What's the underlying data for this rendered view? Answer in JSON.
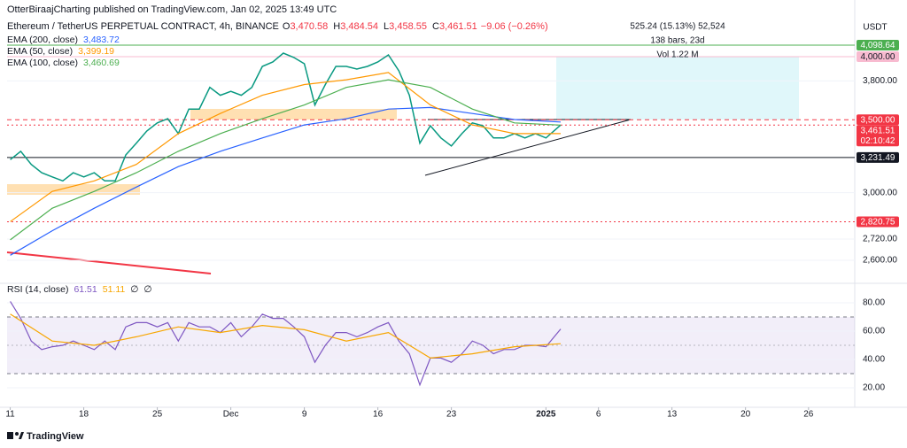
{
  "header": {
    "publisher": "OtterBiraajCharting published on TradingView.com, Jan 02, 2025 13:49 UTC",
    "symbol": "Ethereum / TetherUS PERPETUAL CONTRACT, 4h, BINANCE",
    "ohlc": [
      {
        "label": "O",
        "value": "3,470.58"
      },
      {
        "label": "H",
        "value": "3,484.54"
      },
      {
        "label": "L",
        "value": "3,458.55"
      },
      {
        "label": "C",
        "value": "3,461.51"
      }
    ],
    "change": "−9.06 (−0.26%)",
    "measure": "525.24 (15.13%) 52,524",
    "bars": "138 bars, 23d",
    "volume": "Vol 1.22 M",
    "currency": "USDT",
    "brand": "TradingView"
  },
  "chart_data": [
    {
      "type": "line",
      "log_scale": true,
      "xlim": [
        -0.3,
        80.4
      ],
      "ylim": [
        2486,
        4168
      ],
      "yticks": [
        {
          "value": 2600,
          "label": "2,600.00"
        },
        {
          "value": 2720,
          "label": "2,720.00"
        },
        {
          "value": 3000,
          "label": "3,000.00"
        },
        {
          "value": 3800,
          "label": "3,800.00"
        }
      ],
      "series": [
        {
          "color": "#089981",
          "x": [
            0,
            1,
            2,
            3,
            4,
            5,
            6,
            7,
            8,
            9,
            10,
            11,
            12,
            13,
            14,
            15,
            16,
            17,
            18,
            19,
            20,
            21,
            22,
            23,
            24,
            25,
            26,
            27,
            28,
            29,
            30,
            31,
            32,
            33,
            34,
            35,
            36,
            37,
            38,
            39,
            40,
            41,
            42,
            43,
            44,
            45,
            46,
            47,
            48,
            49,
            50,
            51,
            52.4
          ],
          "values": [
            3217,
            3274,
            3185,
            3129,
            3102,
            3076,
            3129,
            3102,
            3129,
            3076,
            3076,
            3249,
            3331,
            3418,
            3477,
            3508,
            3399,
            3580,
            3580,
            3748,
            3686,
            3717,
            3686,
            3748,
            3918,
            3955,
            4030,
            3993,
            3940,
            3611,
            3771,
            3918,
            3918,
            3896,
            3918,
            3955,
            4015,
            3882,
            3686,
            3331,
            3456,
            3368,
            3311,
            3399,
            3477,
            3456,
            3368,
            3368,
            3399,
            3368,
            3399,
            3368,
            3461.51
          ]
        },
        {
          "name": "EMA (200, close)",
          "legend_value": "3,483.72",
          "color": "#2962ff",
          "x": [
            0,
            4,
            8,
            12,
            16,
            20,
            24,
            28,
            32,
            36,
            40,
            44,
            48,
            52.4
          ],
          "values": [
            2628,
            2768,
            2903,
            3036,
            3170,
            3274,
            3368,
            3462,
            3508,
            3580,
            3592,
            3547,
            3502,
            3483.72
          ]
        },
        {
          "name": "EMA (50, close)",
          "legend_value": "3,399.19",
          "color": "#ff9800",
          "x": [
            0,
            4,
            8,
            12,
            16,
            20,
            24,
            28,
            32,
            36,
            40,
            44,
            48,
            52.4
          ],
          "values": [
            2822,
            3008,
            3076,
            3185,
            3399,
            3547,
            3686,
            3771,
            3809,
            3868,
            3611,
            3462,
            3399,
            3399.19
          ]
        },
        {
          "name": "EMA (100, close)",
          "legend_value": "3,460.69",
          "color": "#4caf50",
          "x": [
            0,
            4,
            8,
            12,
            16,
            20,
            24,
            28,
            32,
            36,
            40,
            44,
            48,
            52.4
          ],
          "values": [
            2715,
            2903,
            3008,
            3129,
            3274,
            3399,
            3508,
            3611,
            3748,
            3809,
            3748,
            3580,
            3477,
            3460.69
          ]
        }
      ],
      "price_labels": [
        {
          "value": 4098.64,
          "label": "4,098.64",
          "color": "#4caf50",
          "text_color": "#ffffff",
          "line": "solid"
        },
        {
          "value": 4000,
          "label": "4,000.00",
          "color": "#f8bbd0",
          "text_color": "#131722",
          "line": "solid"
        },
        {
          "value": 3500,
          "label": "3,500.00",
          "color": "#f23645",
          "text_color": "#ffffff",
          "line": "dashed"
        },
        {
          "value": 3461.51,
          "label": "3,461.51",
          "sublabel": "02:10:42",
          "color": "#f23645",
          "text_color": "#ffffff",
          "line": "dotted"
        },
        {
          "value": 3231.49,
          "label": "3,231.49",
          "color": "#131722",
          "text_color": "#ffffff",
          "line": "solid"
        },
        {
          "value": 2820.75,
          "label": "2,820.75",
          "color": "#f23645",
          "text_color": "#ffffff",
          "line": "dotted"
        }
      ]
    },
    {
      "type": "line",
      "title": "RSI (14, close)",
      "extra_labels": [
        "∅",
        "∅"
      ],
      "xlim": [
        -0.3,
        80.4
      ],
      "xticks": [
        {
          "value": 0,
          "label": "11"
        },
        {
          "value": 7,
          "label": "18"
        },
        {
          "value": 14,
          "label": "25"
        },
        {
          "value": 21,
          "label": "Dec"
        },
        {
          "value": 28,
          "label": "9"
        },
        {
          "value": 35,
          "label": "16"
        },
        {
          "value": 42,
          "label": "23"
        },
        {
          "value": 51,
          "label": "2025"
        },
        {
          "value": 56,
          "label": "6"
        },
        {
          "value": 63,
          "label": "13"
        },
        {
          "value": 70,
          "label": "20"
        },
        {
          "value": 76,
          "label": "26"
        }
      ],
      "ylim": [
        7.5,
        92.5
      ],
      "yticks": [
        {
          "value": 20,
          "label": "20.00"
        },
        {
          "value": 40,
          "label": "40.00"
        },
        {
          "value": 60,
          "label": "60.00"
        },
        {
          "value": 80,
          "label": "80.00"
        }
      ],
      "band": [
        30,
        70
      ],
      "midline": 50,
      "series": [
        {
          "legend_value": "61.51",
          "color": "#7e57c2",
          "x": [
            0,
            1,
            2,
            3,
            4,
            5,
            6,
            7,
            8,
            9,
            10,
            11,
            12,
            13,
            14,
            15,
            16,
            17,
            18,
            19,
            20,
            21,
            22,
            23,
            24,
            25,
            26,
            27,
            28,
            29,
            30,
            31,
            32,
            33,
            34,
            35,
            36,
            37,
            38,
            39,
            40,
            41,
            42,
            43,
            44,
            45,
            46,
            47,
            48,
            49,
            50,
            51,
            52.4
          ],
          "values": [
            81,
            69,
            53,
            47,
            49,
            50,
            53,
            50,
            47,
            53,
            47,
            63,
            66,
            66,
            63,
            66,
            53,
            66,
            63,
            63,
            59,
            66,
            56,
            63,
            72,
            69,
            69,
            63,
            56,
            38,
            50,
            59,
            59,
            56,
            59,
            63,
            66,
            53,
            44,
            22,
            41,
            41,
            38,
            44,
            53,
            50,
            44,
            47,
            47,
            50,
            50,
            49,
            61.51
          ]
        },
        {
          "legend_value": "51.11",
          "color": "#f7a600",
          "x": [
            0,
            4,
            8,
            12,
            16,
            20,
            24,
            28,
            32,
            36,
            40,
            44,
            48,
            52.4
          ],
          "values": [
            72,
            53,
            50,
            56,
            63,
            59,
            64,
            61,
            53,
            59,
            41,
            44,
            49,
            51.11
          ]
        }
      ]
    }
  ]
}
